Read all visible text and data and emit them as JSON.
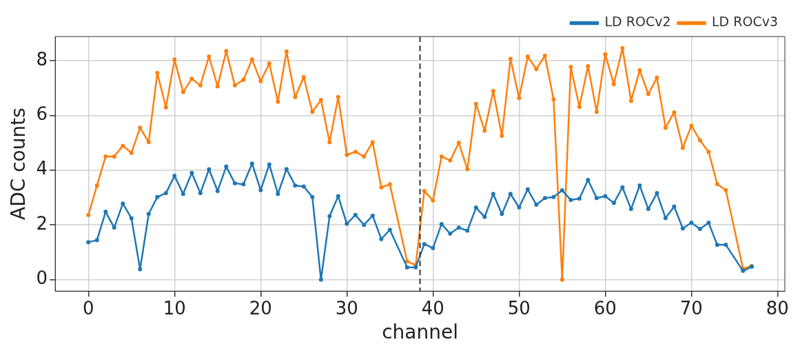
{
  "chart_data": {
    "type": "line",
    "xlabel": "channel",
    "ylabel": "ADC counts",
    "x": [
      0,
      1,
      2,
      3,
      4,
      5,
      6,
      7,
      8,
      9,
      10,
      11,
      12,
      13,
      14,
      15,
      16,
      17,
      18,
      19,
      20,
      21,
      22,
      23,
      24,
      25,
      26,
      27,
      28,
      29,
      30,
      31,
      32,
      33,
      34,
      35,
      37,
      38,
      39,
      40,
      41,
      42,
      43,
      44,
      45,
      46,
      47,
      48,
      49,
      50,
      51,
      52,
      53,
      54,
      55,
      56,
      57,
      58,
      59,
      60,
      61,
      62,
      63,
      64,
      65,
      66,
      67,
      68,
      69,
      70,
      71,
      72,
      73,
      74,
      76,
      77
    ],
    "series": [
      {
        "name": "LD ROCv2",
        "color": "#1f77b4",
        "values": [
          1.37,
          1.44,
          2.48,
          1.9,
          2.78,
          2.24,
          0.38,
          2.4,
          3.02,
          3.16,
          3.79,
          3.13,
          3.9,
          3.16,
          4.03,
          3.24,
          4.13,
          3.52,
          3.48,
          4.24,
          3.27,
          4.21,
          3.13,
          4.04,
          3.44,
          3.4,
          3.02,
          0,
          2.32,
          3.05,
          2.04,
          2.36,
          2.0,
          2.34,
          1.48,
          1.82,
          0.45,
          0.45,
          1.3,
          1.15,
          2.03,
          1.68,
          1.9,
          1.79,
          2.63,
          2.29,
          3.13,
          2.4,
          3.13,
          2.64,
          3.3,
          2.74,
          2.98,
          3.02,
          3.26,
          2.91,
          2.96,
          3.64,
          2.98,
          3.05,
          2.8,
          3.37,
          2.58,
          3.44,
          2.58,
          3.16,
          2.25,
          2.67,
          1.87,
          2.08,
          1.85,
          2.08,
          1.27,
          1.27,
          0.32,
          0.47
        ]
      },
      {
        "name": "LD ROCv3",
        "color": "#ff7f0e",
        "values": [
          2.36,
          3.44,
          4.5,
          4.5,
          4.89,
          4.63,
          5.55,
          5.02,
          7.55,
          6.29,
          8.04,
          6.85,
          7.34,
          7.1,
          8.15,
          7.06,
          8.35,
          7.1,
          7.3,
          8.04,
          7.25,
          7.9,
          6.5,
          8.33,
          6.67,
          7.4,
          6.13,
          6.56,
          5.02,
          6.67,
          4.56,
          4.67,
          4.5,
          5.02,
          3.37,
          3.48,
          0.67,
          0.53,
          3.24,
          2.89,
          4.5,
          4.35,
          5.0,
          4.03,
          6.42,
          5.44,
          6.89,
          5.25,
          8.07,
          6.63,
          8.15,
          7.69,
          8.18,
          6.59,
          0,
          7.77,
          6.31,
          7.8,
          6.13,
          8.23,
          7.14,
          8.46,
          6.53,
          7.65,
          6.78,
          7.38,
          5.55,
          6.11,
          4.81,
          5.62,
          5.09,
          4.67,
          3.49,
          3.27,
          0.4,
          0.5
        ]
      }
    ],
    "xlim": [
      -3.85,
      80.85
    ],
    "ylim": [
      -0.42,
      8.88
    ],
    "xticks": [
      0,
      10,
      20,
      30,
      40,
      50,
      60,
      70,
      80
    ],
    "yticks": [
      0,
      2,
      4,
      6,
      8
    ],
    "ref_lines": [
      {
        "axis": "x",
        "value": 38.5,
        "color": "#333333",
        "line_style": "dashed"
      }
    ],
    "grid": true,
    "legend": "top right",
    "marker": "circle",
    "line_style": "solid"
  }
}
